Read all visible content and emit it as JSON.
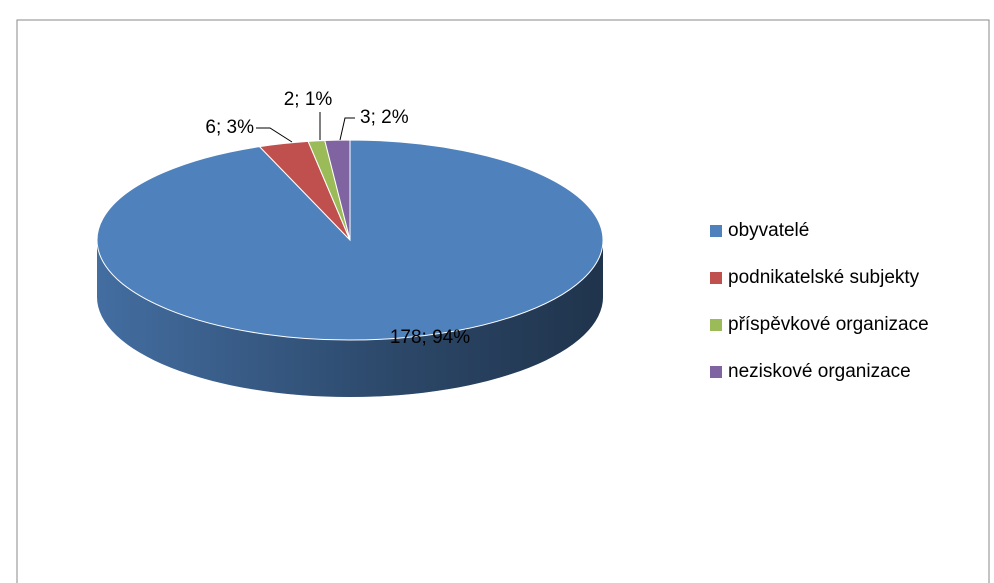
{
  "chart_data": {
    "type": "pie3d",
    "categories": [
      "obyvatelé",
      "podnikatelské subjekty",
      "příspěvkové organizace",
      "neziskové organizace"
    ],
    "values": [
      178,
      6,
      2,
      3
    ],
    "value_labels": [
      "178; 94%",
      "6; 3%",
      "2; 1%",
      "3; 2%"
    ],
    "colors": [
      "#4f81bd",
      "#c0504d",
      "#9bbb59",
      "#8064a2"
    ],
    "legend": "right"
  }
}
